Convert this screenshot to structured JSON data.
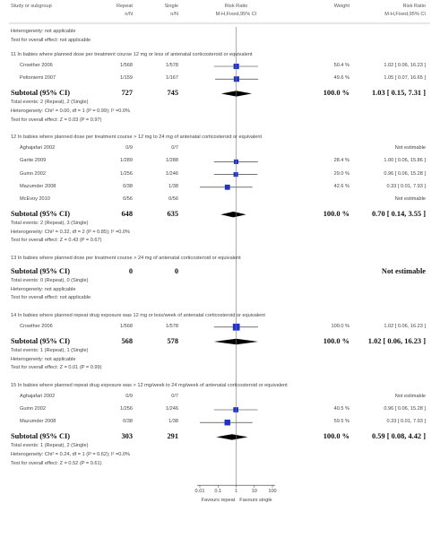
{
  "header": {
    "study": "Study or subgroup",
    "repeat": "Repeat",
    "single": "Single",
    "rr_mid": "Risk Ratio",
    "weight": "Weight",
    "rr_right": "Risk Ratio",
    "repeat_sub": "n/N",
    "single_sub": "n/N",
    "method_mid": "M-H,Fixed,95% CI",
    "method_right": "M-H,Fixed,95% CI"
  },
  "intro": {
    "het": "Heterogeneity: not applicable",
    "test": "Test for overall effect: not applicable"
  },
  "axis": {
    "ticks": [
      "0.01",
      "0.1",
      "1",
      "10",
      "100"
    ],
    "favours_left": "Favours repeat",
    "favours_right": "Favours single"
  },
  "colors": {
    "marker": "#1f35c8",
    "diamond": "#000000",
    "line": "#777777"
  },
  "subgroups": [
    {
      "title": "11 In babies where planned dose per treatment course 12 mg or less of antenatal corticosteroid or equivalent",
      "studies": [
        {
          "name": "Crowther 2006",
          "repeat": "1/568",
          "single": "1/578",
          "weight": "50.4 %",
          "rr": "1.02 [ 0.06, 16.23 ]",
          "est": 1.02,
          "lo": 0.06,
          "hi": 16.23
        },
        {
          "name": "Peltoniemi 2007",
          "repeat": "1/159",
          "single": "1/167",
          "weight": "49.6 %",
          "rr": "1.05 [ 0.07, 16.65 ]",
          "est": 1.05,
          "lo": 0.07,
          "hi": 16.65
        }
      ],
      "subtotal": {
        "label": "Subtotal (95% CI)",
        "repeat": "727",
        "single": "745",
        "weight": "100.0 %",
        "rr": "1.03 [ 0.15, 7.31 ]",
        "est": 1.03,
        "lo": 0.15,
        "hi": 7.31
      },
      "notes": [
        "Total events: 2 (Repeat), 2 (Single)",
        "Heterogeneity: Chi² = 0.00, df = 1 (P = 0.99); I² =0.0%",
        "Test for overall effect: Z = 0.03 (P = 0.97)"
      ]
    },
    {
      "title": "12 In babies where planned dose per treatment course > 12 mg to 24 mg of antenatal corticosteroid or equivalent",
      "studies": [
        {
          "name": "Aghajafari 2002",
          "repeat": "0/9",
          "single": "0/7",
          "weight": "",
          "rr": "Not estimable"
        },
        {
          "name": "Garite 2009",
          "repeat": "1/289",
          "single": "1/288",
          "weight": "28.4 %",
          "rr": "1.00 [ 0.06, 15.86 ]",
          "est": 1.0,
          "lo": 0.06,
          "hi": 15.86
        },
        {
          "name": "Guinn 2002",
          "repeat": "1/256",
          "single": "1/246",
          "weight": "29.0 %",
          "rr": "0.96 [ 0.06, 15.28 ]",
          "est": 0.96,
          "lo": 0.06,
          "hi": 15.28
        },
        {
          "name": "Mazumder 2008",
          "repeat": "0/38",
          "single": "1/38",
          "weight": "42.6 %",
          "rr": "0.33 [ 0.01, 7.93 ]",
          "est": 0.33,
          "lo": 0.01,
          "hi": 7.93
        },
        {
          "name": "McEvoy 2010",
          "repeat": "0/56",
          "single": "0/56",
          "weight": "",
          "rr": "Not estimable"
        }
      ],
      "subtotal": {
        "label": "Subtotal (95% CI)",
        "repeat": "648",
        "single": "635",
        "weight": "100.0 %",
        "rr": "0.70 [ 0.14, 3.55 ]",
        "est": 0.7,
        "lo": 0.14,
        "hi": 3.55
      },
      "notes": [
        "Total events: 2 (Repeat), 3 (Single)",
        "Heterogeneity: Chi² = 0.32, df = 2 (P = 0.85); I² =0.0%",
        "Test for overall effect: Z = 0.43 (P = 0.67)"
      ]
    },
    {
      "title": "13 In babies where planned dose per treatment course > 24 mg of antenatal corticosteroid or equivalent",
      "studies": [],
      "subtotal": {
        "label": "Subtotal (95% CI)",
        "repeat": "0",
        "single": "0",
        "weight": "",
        "rr": "Not estimable"
      },
      "notes": [
        "Total events: 0 (Repeat), 0 (Single)",
        "Heterogeneity: not applicable",
        "Test for overall effect: not applicable"
      ]
    },
    {
      "title": "14 In babies where planned repeat drug exposure was 12 mg or less/week of antenatal corticosteroid or equivalent",
      "studies": [
        {
          "name": "Crowther 2006",
          "repeat": "1/568",
          "single": "1/578",
          "weight": "100.0 %",
          "rr": "1.02 [ 0.06, 16.23 ]",
          "est": 1.02,
          "lo": 0.06,
          "hi": 16.23
        }
      ],
      "subtotal": {
        "label": "Subtotal (95% CI)",
        "repeat": "568",
        "single": "578",
        "weight": "100.0 %",
        "rr": "1.02 [ 0.06, 16.23 ]",
        "est": 1.02,
        "lo": 0.06,
        "hi": 16.23
      },
      "notes": [
        "Total events: 1 (Repeat), 1 (Single)",
        "Heterogeneity: not applicable",
        "Test for overall effect: Z = 0.01 (P = 0.99)"
      ]
    },
    {
      "title": "15 In babies where planned repeat drug exposure was > 12 mg/week to 24 mg/week of antenatal corticosteroid or equivalent",
      "studies": [
        {
          "name": "Aghajafari 2002",
          "repeat": "0/9",
          "single": "0/7",
          "weight": "",
          "rr": "Not estimable"
        },
        {
          "name": "Guinn 2002",
          "repeat": "1/256",
          "single": "1/246",
          "weight": "40.5 %",
          "rr": "0.96 [ 0.06, 15.28 ]",
          "est": 0.96,
          "lo": 0.06,
          "hi": 15.28
        },
        {
          "name": "Mazumder 2008",
          "repeat": "0/38",
          "single": "1/38",
          "weight": "59.5 %",
          "rr": "0.33 [ 0.01, 7.93 ]",
          "est": 0.33,
          "lo": 0.01,
          "hi": 7.93
        }
      ],
      "subtotal": {
        "label": "Subtotal (95% CI)",
        "repeat": "303",
        "single": "291",
        "weight": "100.0 %",
        "rr": "0.59 [ 0.08, 4.42 ]",
        "est": 0.59,
        "lo": 0.08,
        "hi": 4.42
      },
      "notes": [
        "Total events: 1 (Repeat), 2 (Single)",
        "Heterogeneity: Chi² = 0.24, df = 1 (P = 0.62); I² =0.0%",
        "Test for overall effect: Z = 0.52 (P = 0.61)"
      ]
    }
  ]
}
